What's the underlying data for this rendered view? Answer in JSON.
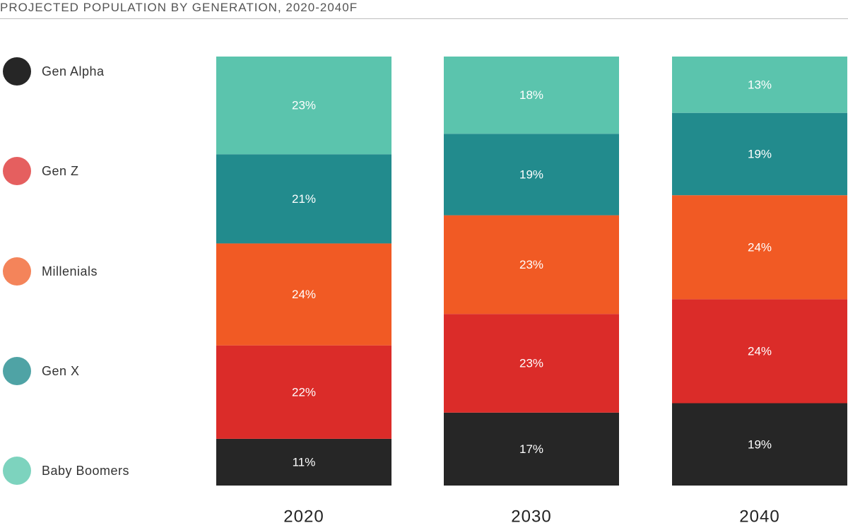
{
  "chart_data": {
    "type": "bar",
    "stacked": true,
    "title": "PROJECTED POPULATION BY GENERATION, 2020-2040F",
    "categories": [
      "2020",
      "2030",
      "2040"
    ],
    "series": [
      {
        "name": "Gen Alpha",
        "key": "gen-alpha",
        "values": [
          11,
          17,
          19
        ],
        "labels": [
          "11%",
          "17%",
          "19%"
        ],
        "color": "#262626",
        "legend_color": "#262626"
      },
      {
        "name": "Gen Z",
        "key": "gen-z",
        "values": [
          22,
          23,
          24
        ],
        "labels": [
          "22%",
          "23%",
          "24%"
        ],
        "color": "#db2c29",
        "legend_color": "#e55f5f"
      },
      {
        "name": "Millenials",
        "key": "millenials",
        "values": [
          24,
          23,
          24
        ],
        "labels": [
          "24%",
          "23%",
          "24%"
        ],
        "color": "#f15a24",
        "legend_color": "#f4845a"
      },
      {
        "name": "Gen X",
        "key": "gen-x",
        "values": [
          21,
          19,
          19
        ],
        "labels": [
          "21%",
          "19%",
          "19%"
        ],
        "color": "#228b8d",
        "legend_color": "#4fa3a5"
      },
      {
        "name": "Baby Boomers",
        "key": "baby-boomers",
        "values": [
          23,
          18,
          13
        ],
        "labels": [
          "23%",
          "18%",
          "13%"
        ],
        "color": "#5bc4ad",
        "legend_color": "#7dd3be"
      }
    ],
    "legend_position": "left",
    "legend_order": [
      "Gen Alpha",
      "Gen Z",
      "Millenials",
      "Gen X",
      "Baby Boomers"
    ],
    "grid": false,
    "xlabel": "",
    "ylabel": ""
  }
}
